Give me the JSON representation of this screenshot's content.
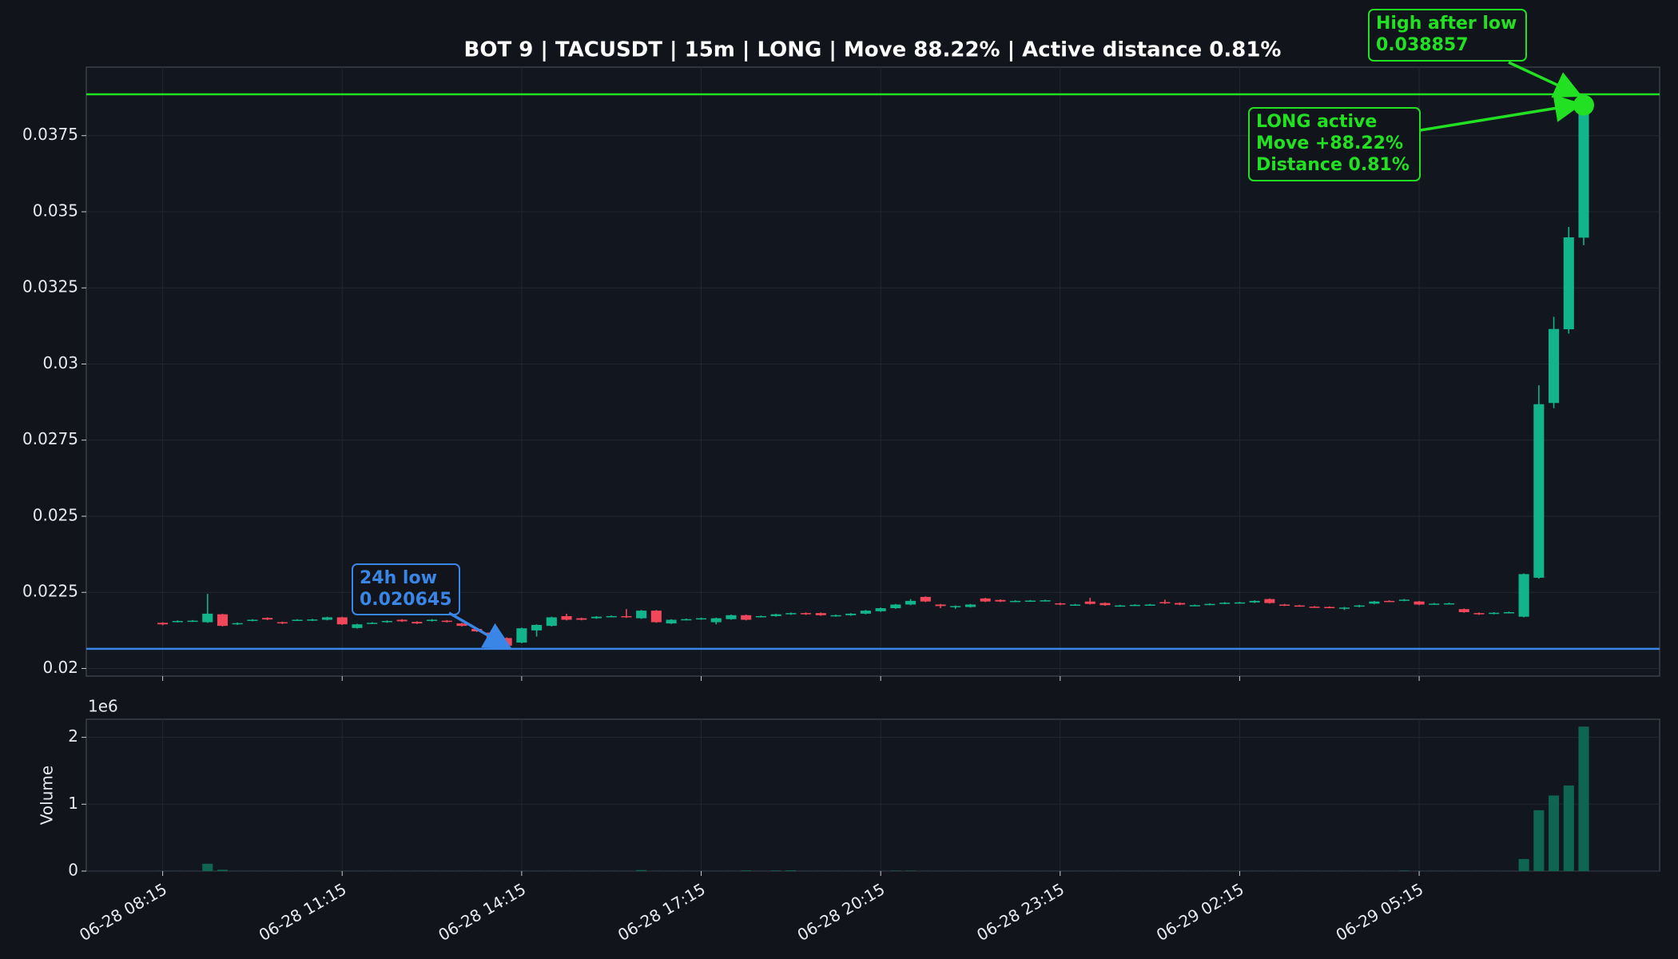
{
  "chart_data": {
    "type": "candlestick",
    "title": "BOT 9 | TACUSDT | 15m | LONG | Move 88.22% | Active distance 0.81%",
    "x": [
      "06-28 08:15",
      "06-28 08:30",
      "06-28 08:45",
      "06-28 09:00",
      "06-28 09:15",
      "06-28 09:30",
      "06-28 09:45",
      "06-28 10:00",
      "06-28 10:15",
      "06-28 10:30",
      "06-28 10:45",
      "06-28 11:00",
      "06-28 11:15",
      "06-28 11:30",
      "06-28 11:45",
      "06-28 12:00",
      "06-28 12:15",
      "06-28 12:30",
      "06-28 12:45",
      "06-28 13:00",
      "06-28 13:15",
      "06-28 13:30",
      "06-28 13:45",
      "06-28 14:00",
      "06-28 14:15",
      "06-28 14:30",
      "06-28 14:45",
      "06-28 15:00",
      "06-28 15:15",
      "06-28 15:30",
      "06-28 15:45",
      "06-28 16:00",
      "06-28 16:15",
      "06-28 16:30",
      "06-28 16:45",
      "06-28 17:00",
      "06-28 17:15",
      "06-28 17:30",
      "06-28 17:45",
      "06-28 18:00",
      "06-28 18:15",
      "06-28 18:30",
      "06-28 18:45",
      "06-28 19:00",
      "06-28 19:15",
      "06-28 19:30",
      "06-28 19:45",
      "06-28 20:00",
      "06-28 20:15",
      "06-28 20:30",
      "06-28 20:45",
      "06-28 21:00",
      "06-28 21:15",
      "06-28 21:30",
      "06-28 21:45",
      "06-28 22:00",
      "06-28 22:15",
      "06-28 22:30",
      "06-28 22:45",
      "06-28 23:00",
      "06-28 23:15",
      "06-28 23:30",
      "06-28 23:45",
      "06-29 00:00",
      "06-29 00:15",
      "06-29 00:30",
      "06-29 00:45",
      "06-29 01:00",
      "06-29 01:15",
      "06-29 01:30",
      "06-29 01:45",
      "06-29 02:00",
      "06-29 02:15",
      "06-29 02:30",
      "06-29 02:45",
      "06-29 03:00",
      "06-29 03:15",
      "06-29 03:30",
      "06-29 03:45",
      "06-29 04:00",
      "06-29 04:15",
      "06-29 04:30",
      "06-29 04:45",
      "06-29 05:00",
      "06-29 05:15",
      "06-29 05:30",
      "06-29 05:45",
      "06-29 06:00",
      "06-29 06:15",
      "06-29 06:30",
      "06-29 06:45",
      "06-29 07:00",
      "06-29 07:15",
      "06-29 07:30",
      "06-29 07:45",
      "06-29 08:00"
    ],
    "open": [
      0.0215,
      0.02153,
      0.02155,
      0.02152,
      0.02178,
      0.02145,
      0.02157,
      0.02166,
      0.02152,
      0.02158,
      0.02158,
      0.0216,
      0.02168,
      0.02133,
      0.02148,
      0.02152,
      0.0216,
      0.02153,
      0.02156,
      0.02157,
      0.02148,
      0.0213,
      0.02118,
      0.021,
      0.02085,
      0.02125,
      0.0214,
      0.02172,
      0.02165,
      0.02165,
      0.0217,
      0.02172,
      0.02165,
      0.0219,
      0.02148,
      0.0216,
      0.02162,
      0.02152,
      0.02162,
      0.02175,
      0.0217,
      0.02172,
      0.02178,
      0.02182,
      0.02182,
      0.02172,
      0.02175,
      0.0218,
      0.02188,
      0.02198,
      0.0221,
      0.02235,
      0.0221,
      0.02203,
      0.02202,
      0.0223,
      0.02225,
      0.0222,
      0.02221,
      0.02222,
      0.02214,
      0.02208,
      0.0222,
      0.02215,
      0.02205,
      0.02207,
      0.02208,
      0.02218,
      0.02215,
      0.02207,
      0.0221,
      0.02213,
      0.02215,
      0.02217,
      0.02228,
      0.0221,
      0.02207,
      0.02203,
      0.02202,
      0.02198,
      0.02203,
      0.02213,
      0.02222,
      0.02223,
      0.0222,
      0.02212,
      0.02213,
      0.02195,
      0.02182,
      0.0218,
      0.02183,
      0.0217,
      0.02298,
      0.02872,
      0.03114,
      0.03415
    ],
    "high": [
      0.02152,
      0.02158,
      0.02159,
      0.02245,
      0.0218,
      0.02151,
      0.02162,
      0.02168,
      0.02154,
      0.02162,
      0.02163,
      0.0217,
      0.0217,
      0.02147,
      0.02152,
      0.02158,
      0.02162,
      0.02155,
      0.02162,
      0.02159,
      0.0215,
      0.02132,
      0.0212,
      0.02102,
      0.02134,
      0.02145,
      0.0217,
      0.0218,
      0.02167,
      0.02172,
      0.02174,
      0.02195,
      0.02192,
      0.02192,
      0.02162,
      0.02164,
      0.02167,
      0.02167,
      0.02177,
      0.02177,
      0.02174,
      0.0218,
      0.02184,
      0.02184,
      0.02184,
      0.02177,
      0.02182,
      0.02192,
      0.022,
      0.02212,
      0.02228,
      0.02237,
      0.02212,
      0.02207,
      0.02212,
      0.02232,
      0.02227,
      0.02224,
      0.02225,
      0.02226,
      0.02216,
      0.02212,
      0.02232,
      0.02217,
      0.02209,
      0.02211,
      0.02212,
      0.02226,
      0.02217,
      0.0221,
      0.02214,
      0.02218,
      0.02219,
      0.02224,
      0.0223,
      0.02212,
      0.02209,
      0.02205,
      0.02204,
      0.02202,
      0.02209,
      0.02222,
      0.02224,
      0.02228,
      0.02222,
      0.02215,
      0.02216,
      0.02197,
      0.02184,
      0.02185,
      0.02187,
      0.02312,
      0.0293,
      0.03155,
      0.0345,
      0.038857
    ],
    "low": [
      0.02142,
      0.02151,
      0.02153,
      0.0215,
      0.02138,
      0.02143,
      0.02155,
      0.02159,
      0.02146,
      0.02156,
      0.02156,
      0.02158,
      0.02143,
      0.02131,
      0.02146,
      0.0215,
      0.02153,
      0.02146,
      0.02154,
      0.02151,
      0.02138,
      0.0212,
      0.02098,
      0.020645,
      0.02083,
      0.02105,
      0.02138,
      0.02158,
      0.02158,
      0.02163,
      0.02168,
      0.02166,
      0.02163,
      0.0215,
      0.02146,
      0.02158,
      0.0216,
      0.02145,
      0.0216,
      0.02158,
      0.02168,
      0.0217,
      0.02176,
      0.02176,
      0.02173,
      0.0217,
      0.02173,
      0.02178,
      0.02186,
      0.02196,
      0.02208,
      0.02218,
      0.02198,
      0.02196,
      0.022,
      0.02218,
      0.02218,
      0.02218,
      0.02219,
      0.0222,
      0.02208,
      0.02206,
      0.0221,
      0.02206,
      0.02203,
      0.02205,
      0.02206,
      0.02212,
      0.02208,
      0.02205,
      0.02208,
      0.02211,
      0.02213,
      0.02215,
      0.02213,
      0.02205,
      0.02203,
      0.022,
      0.02198,
      0.02192,
      0.02201,
      0.02211,
      0.02218,
      0.02221,
      0.02208,
      0.0221,
      0.02211,
      0.02183,
      0.02176,
      0.02178,
      0.02181,
      0.02168,
      0.02295,
      0.02855,
      0.031,
      0.0339
    ],
    "close": [
      0.02145,
      0.02156,
      0.02157,
      0.0218,
      0.0214,
      0.02149,
      0.0216,
      0.02161,
      0.02148,
      0.0216,
      0.02161,
      0.02168,
      0.02145,
      0.02145,
      0.0215,
      0.02156,
      0.02155,
      0.02148,
      0.0216,
      0.02153,
      0.0214,
      0.02122,
      0.021,
      0.02075,
      0.02132,
      0.02143,
      0.02168,
      0.0216,
      0.0216,
      0.0217,
      0.02172,
      0.02168,
      0.0219,
      0.02152,
      0.0216,
      0.02162,
      0.02165,
      0.02165,
      0.02175,
      0.0216,
      0.02172,
      0.02178,
      0.02182,
      0.02178,
      0.02175,
      0.02175,
      0.0218,
      0.0219,
      0.02198,
      0.0221,
      0.02222,
      0.0222,
      0.02205,
      0.02205,
      0.0221,
      0.0222,
      0.0222,
      0.02222,
      0.02223,
      0.02224,
      0.0221,
      0.0221,
      0.02212,
      0.02208,
      0.02207,
      0.02209,
      0.0221,
      0.02214,
      0.0221,
      0.02208,
      0.02212,
      0.02216,
      0.02217,
      0.02222,
      0.02215,
      0.02207,
      0.02205,
      0.02202,
      0.022,
      0.022,
      0.02207,
      0.0222,
      0.0222,
      0.02226,
      0.0221,
      0.02213,
      0.02214,
      0.02185,
      0.02178,
      0.02183,
      0.02185,
      0.0231,
      0.02868,
      0.03115,
      0.03416,
      0.0385
    ],
    "up_color": "#12b48c",
    "down_color": "#f0475a",
    "ylim": [
      0.01975,
      0.03975
    ],
    "yticks": [
      0.02,
      0.0225,
      0.025,
      0.0275,
      0.03,
      0.0325,
      0.035,
      0.0375
    ],
    "xticks": [
      "06-28 08:15",
      "06-28 11:15",
      "06-28 14:15",
      "06-28 17:15",
      "06-28 20:15",
      "06-28 23:15",
      "06-29 02:15",
      "06-29 05:15"
    ],
    "grid": true,
    "annotations": [
      {
        "lines": [
          "High after low",
          "0.038857"
        ],
        "value": 0.038857,
        "color": "#22e022"
      },
      {
        "lines": [
          "24h low",
          "0.020645"
        ],
        "value": 0.020645,
        "color": "#3a86e6"
      },
      {
        "lines": [
          "LONG active",
          "Move +88.22%",
          "Distance 0.81%"
        ],
        "color": "#22e022"
      }
    ],
    "volume": {
      "ylabel": "Volume",
      "offset_label": "1e6",
      "color": "#0d6552",
      "values": [
        2000,
        2000,
        2000,
        110000,
        20000,
        2000,
        2000,
        2000,
        2000,
        2000,
        2000,
        2000,
        2000,
        2000,
        2000,
        2000,
        2000,
        2000,
        2000,
        2000,
        2000,
        2000,
        2000,
        2000,
        2000,
        2000,
        2000,
        2000,
        2000,
        2000,
        2000,
        2000,
        15000,
        2000,
        2000,
        2000,
        2000,
        2000,
        2000,
        10000,
        2000,
        8000,
        12000,
        2000,
        2000,
        2000,
        2000,
        2000,
        2000,
        6000,
        6000,
        2000,
        2000,
        2000,
        2000,
        2000,
        2000,
        2000,
        2000,
        2000,
        2000,
        2000,
        2000,
        2000,
        2000,
        2000,
        2000,
        2000,
        2000,
        2000,
        2000,
        2000,
        2000,
        2000,
        2000,
        2000,
        2000,
        2000,
        2000,
        2000,
        2000,
        2000,
        2000,
        8000,
        2000,
        2000,
        2000,
        2000,
        2000,
        2000,
        2000,
        180000,
        910000,
        1130000,
        1280000,
        2160000
      ],
      "ylim": [
        0,
        2270000
      ],
      "yticks": [
        0,
        {
          "value": 1000000,
          "label": "1"
        },
        {
          "value": 2000000,
          "label": "2"
        }
      ]
    }
  }
}
